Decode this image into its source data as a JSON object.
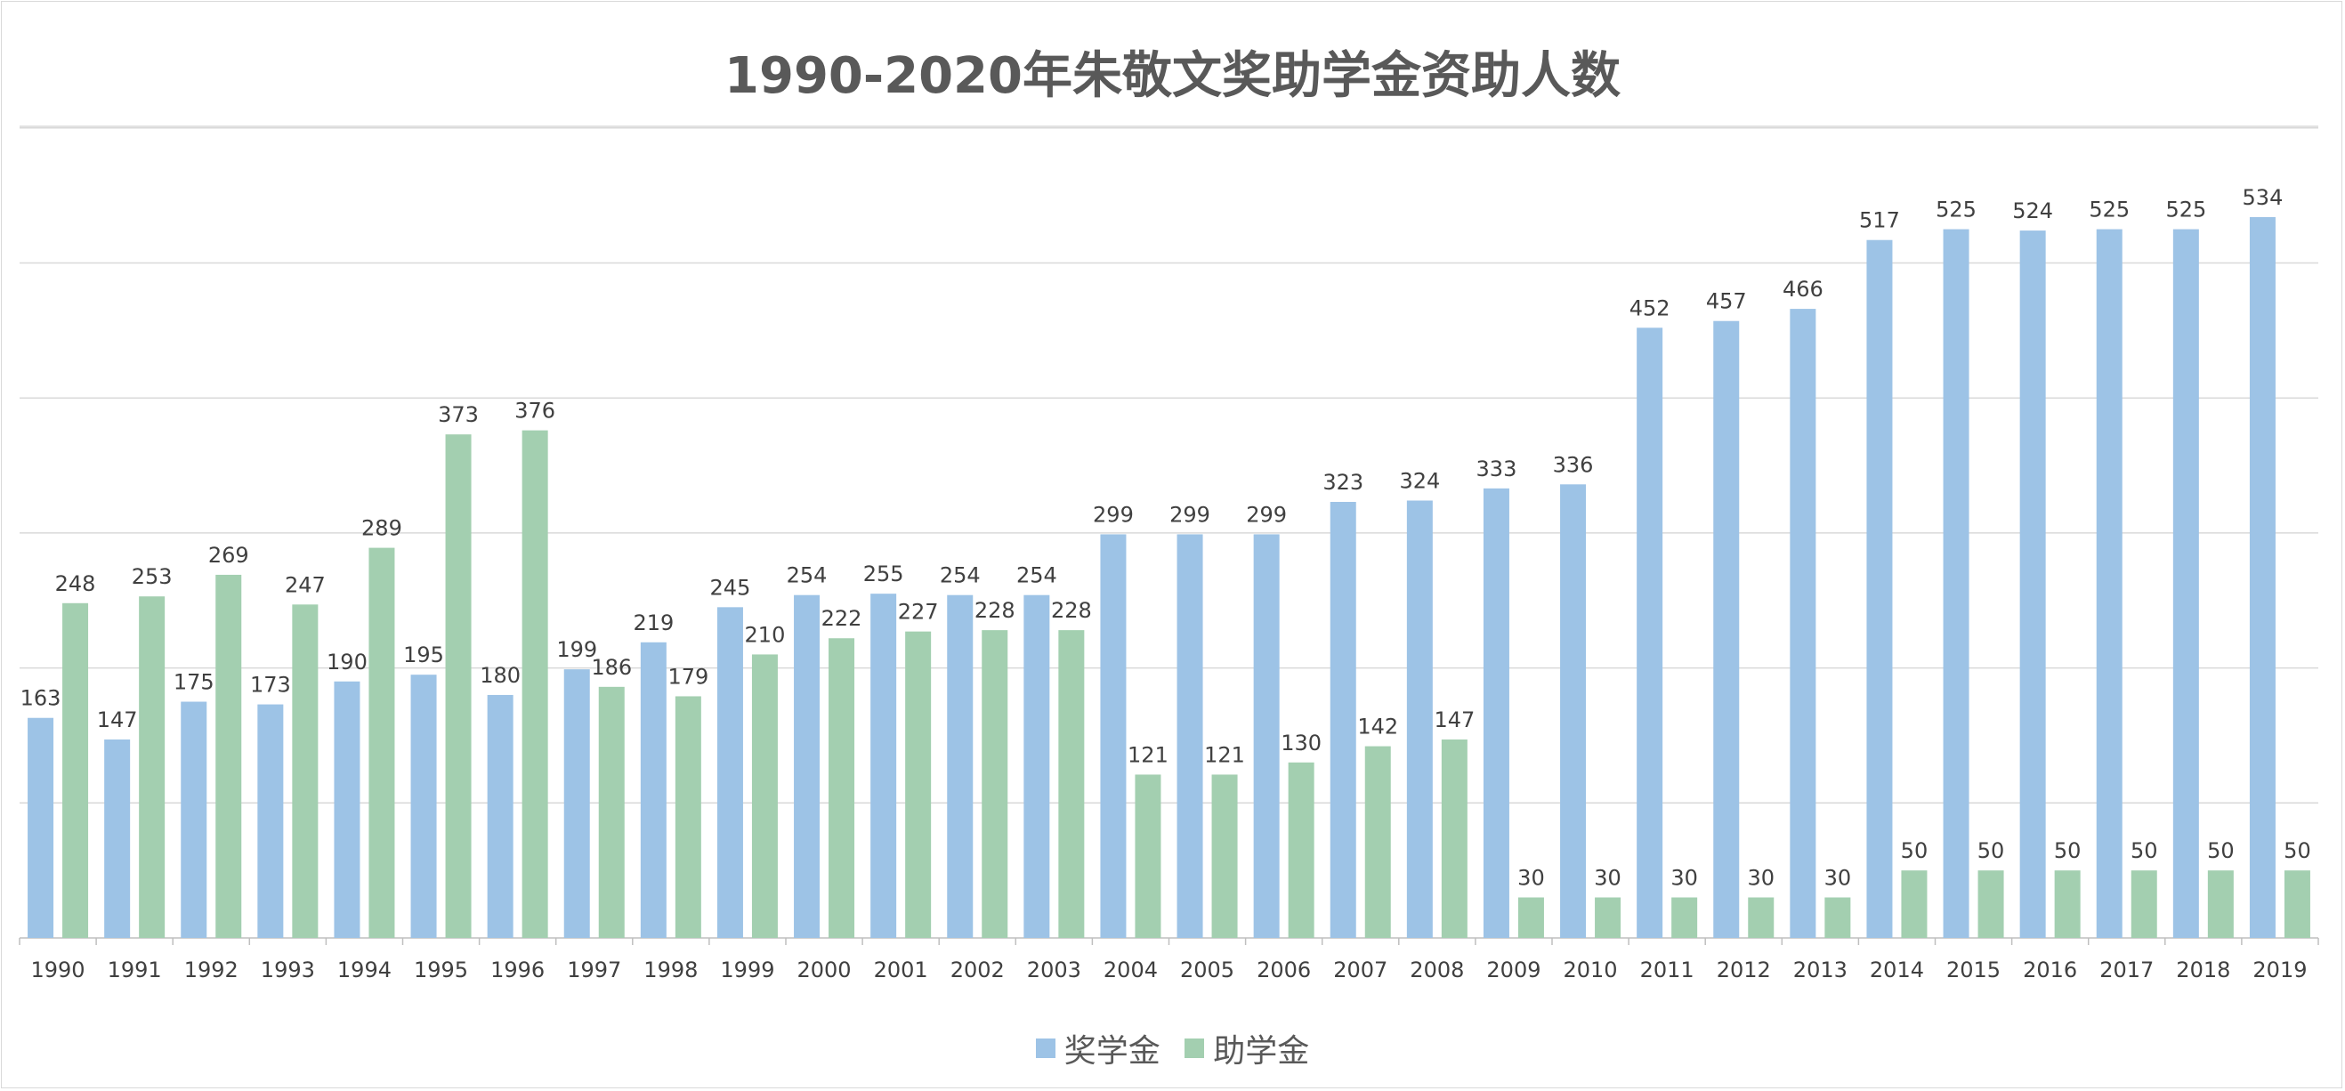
{
  "chart_data": {
    "type": "bar",
    "title": "1990-2020年朱敬文奖助学金资助人数",
    "xlabel": "",
    "ylabel": "",
    "ylim": [
      0,
      600
    ],
    "grid": true,
    "legend_position": "bottom",
    "categories": [
      "1990",
      "1991",
      "1992",
      "1993",
      "1994",
      "1995",
      "1996",
      "1997",
      "1998",
      "1999",
      "2000",
      "2001",
      "2002",
      "2003",
      "2004",
      "2005",
      "2006",
      "2007",
      "2008",
      "2009",
      "2010",
      "2011",
      "2012",
      "2013",
      "2014",
      "2015",
      "2016",
      "2017",
      "2018",
      "2019"
    ],
    "series": [
      {
        "name": "奖学金",
        "color": "#9dc3e6",
        "values": [
          163,
          147,
          175,
          173,
          190,
          195,
          180,
          199,
          219,
          245,
          254,
          255,
          254,
          254,
          299,
          299,
          299,
          323,
          324,
          333,
          336,
          452,
          457,
          466,
          517,
          525,
          524,
          525,
          525,
          534
        ]
      },
      {
        "name": "助学金",
        "color": "#a3cfb0",
        "values": [
          248,
          253,
          269,
          247,
          289,
          373,
          376,
          186,
          179,
          210,
          222,
          227,
          228,
          228,
          121,
          121,
          130,
          142,
          147,
          30,
          30,
          30,
          30,
          30,
          50,
          50,
          50,
          50,
          50,
          50
        ]
      }
    ]
  }
}
